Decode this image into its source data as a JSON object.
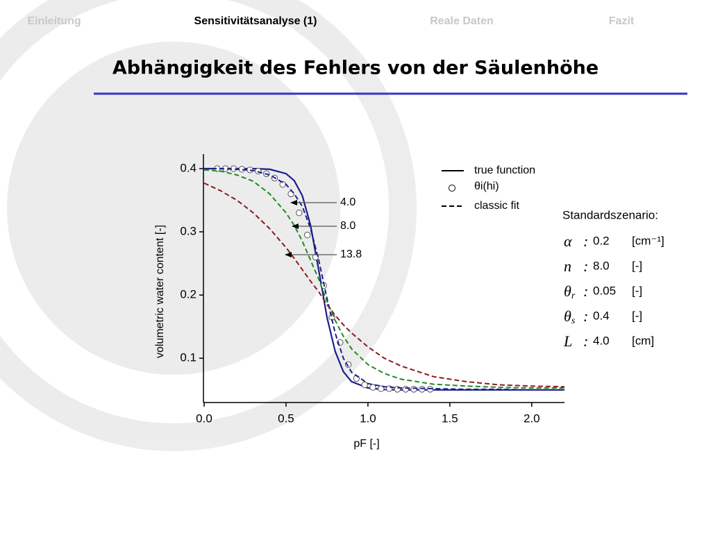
{
  "nav": {
    "items": [
      "Einleitung",
      "Sensitivitätsanalyse (1)",
      "Reale Daten",
      "Fazit"
    ],
    "active": 1
  },
  "title": "Abhängigkeit des Fehlers von der Säulenhöhe",
  "chart_data": {
    "type": "line",
    "x_label": "pF [-]",
    "y_label": "volumetric water content [-]",
    "x": [
      0,
      0.1,
      0.2,
      0.3,
      0.4,
      0.5,
      0.55,
      0.6,
      0.65,
      0.7,
      0.75,
      0.8,
      0.85,
      0.9,
      1.0,
      1.1,
      1.2,
      1.4,
      1.6,
      1.8,
      2.0,
      2.2
    ],
    "xlim": [
      0,
      2.2
    ],
    "ylim": [
      0.03,
      0.423
    ],
    "xticks": [
      {
        "value": 0,
        "label": "0.0"
      },
      0.5,
      {
        "value": 1,
        "label": "1.0"
      },
      1.5,
      {
        "value": 2,
        "label": "2.0"
      }
    ],
    "yticks": [
      0.1,
      0.2,
      0.3,
      0.4
    ],
    "series": [
      {
        "name": "true function",
        "style": "solid",
        "color": "#1c1c8a",
        "values": [
          0.4,
          0.4,
          0.4,
          0.4,
          0.399,
          0.392,
          0.381,
          0.357,
          0.31,
          0.239,
          0.165,
          0.111,
          0.079,
          0.063,
          0.053,
          0.0505,
          0.05,
          0.05,
          0.05,
          0.05,
          0.05,
          0.05
        ]
      },
      {
        "name": "θi(hi)",
        "style": "markers",
        "color": "#555555",
        "x": [
          0.08,
          0.13,
          0.18,
          0.23,
          0.28,
          0.33,
          0.38,
          0.43,
          0.48,
          0.53,
          0.58,
          0.63,
          0.68,
          0.73,
          0.78,
          0.83,
          0.88,
          0.93,
          0.98,
          1.03,
          1.08,
          1.13,
          1.18,
          1.23,
          1.28,
          1.33,
          1.38
        ],
        "values": [
          0.4,
          0.4,
          0.4,
          0.399,
          0.398,
          0.396,
          0.392,
          0.385,
          0.375,
          0.36,
          0.33,
          0.295,
          0.26,
          0.215,
          0.165,
          0.125,
          0.09,
          0.068,
          0.058,
          0.054,
          0.052,
          0.052,
          0.051,
          0.051,
          0.051,
          0.051,
          0.051
        ]
      },
      {
        "name": "classic fit",
        "style": "dashed",
        "color": "#000000",
        "curves": [
          {
            "label": "4.0",
            "color": "#1c1c8a",
            "values": [
              0.4,
              0.4,
              0.399,
              0.397,
              0.39,
              0.375,
              0.36,
              0.34,
              0.305,
              0.255,
              0.195,
              0.14,
              0.1,
              0.078,
              0.06,
              0.055,
              0.053,
              0.052,
              0.051,
              0.051,
              0.05,
              0.05
            ]
          },
          {
            "label": "8.0",
            "color": "#1f8a1f",
            "values": [
              0.398,
              0.396,
              0.39,
              0.38,
              0.36,
              0.33,
              0.31,
              0.285,
              0.255,
              0.225,
              0.19,
              0.16,
              0.135,
              0.115,
              0.09,
              0.076,
              0.067,
              0.059,
              0.056,
              0.054,
              0.053,
              0.053
            ]
          },
          {
            "label": "13.8",
            "color": "#8b1a1a",
            "values": [
              0.377,
              0.365,
              0.35,
              0.33,
              0.305,
              0.275,
              0.258,
              0.24,
              0.222,
              0.205,
              0.185,
              0.168,
              0.153,
              0.14,
              0.118,
              0.1,
              0.088,
              0.071,
              0.063,
              0.058,
              0.056,
              0.055
            ]
          }
        ]
      }
    ]
  },
  "scenario": {
    "heading": "Standardszenario:",
    "rows": [
      {
        "symbol": "α",
        "value": "0.2",
        "unit": "[cm⁻¹]"
      },
      {
        "symbol": "n",
        "value": "8.0",
        "unit": "[-]"
      },
      {
        "symbol": "θ",
        "subscript": "r",
        "value": "0.05",
        "unit": "[-]"
      },
      {
        "symbol": "θ",
        "subscript": "s",
        "value": "0.4",
        "unit": "[-]"
      },
      {
        "symbol": "L",
        "value": "4.0",
        "unit": "[cm]"
      }
    ]
  }
}
